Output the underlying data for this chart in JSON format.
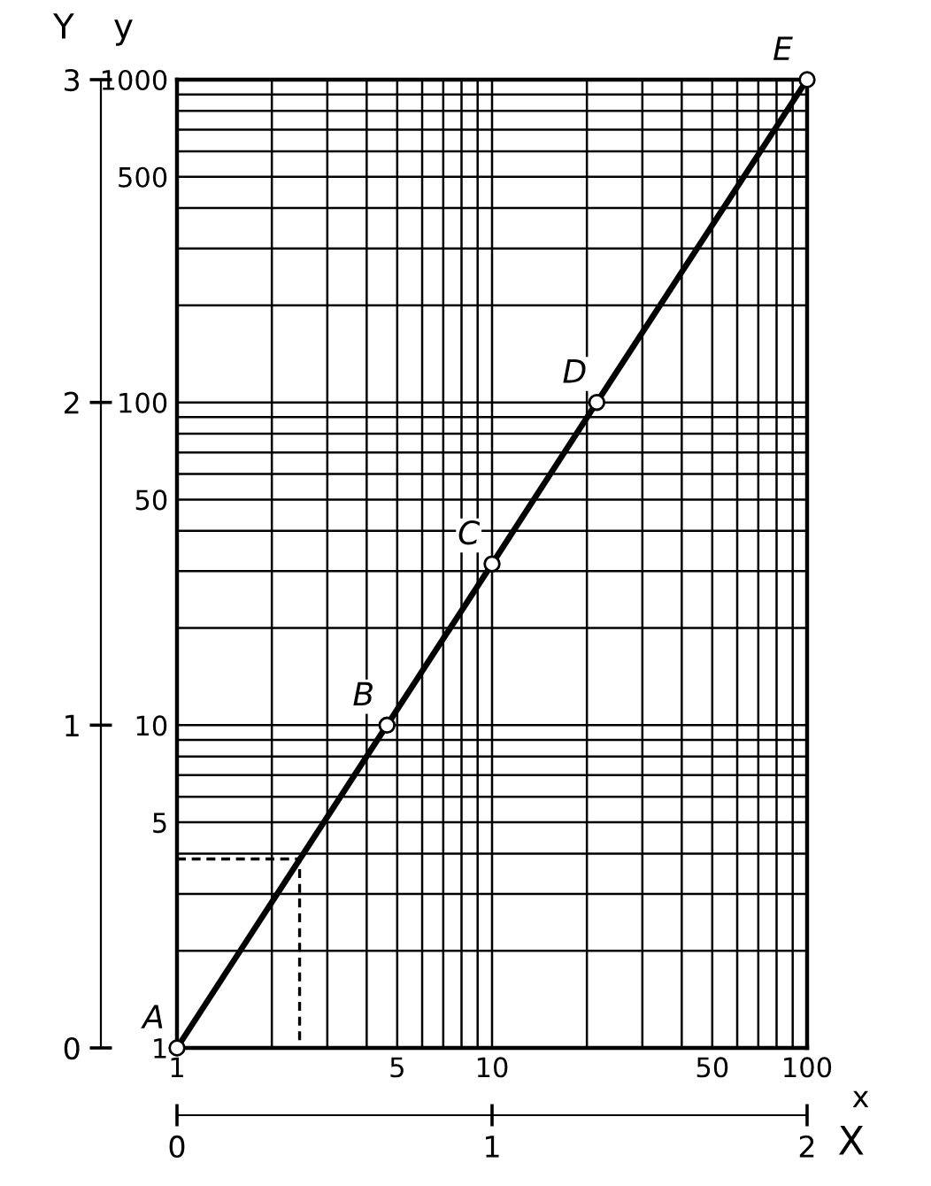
{
  "chart_data": {
    "type": "line",
    "xlabel": "x",
    "ylabel": "y",
    "x2label": "X",
    "y2label": "Y",
    "log": "xy",
    "grid": true,
    "xlim": [
      1,
      100
    ],
    "ylim": [
      1,
      1000
    ],
    "xticks": [
      1,
      {
        "value": 2,
        "label": null
      },
      {
        "value": 3,
        "label": null
      },
      {
        "value": 4,
        "label": null
      },
      5,
      {
        "value": 6,
        "label": null
      },
      {
        "value": 7,
        "label": null
      },
      {
        "value": 8,
        "label": null
      },
      {
        "value": 9,
        "label": null
      },
      10,
      {
        "value": 20,
        "label": null
      },
      {
        "value": 30,
        "label": null
      },
      {
        "value": 40,
        "label": null
      },
      50,
      {
        "value": 60,
        "label": null
      },
      {
        "value": 70,
        "label": null
      },
      {
        "value": 80,
        "label": null
      },
      {
        "value": 90,
        "label": null
      },
      100
    ],
    "yticks": [
      1,
      {
        "value": 2,
        "label": null
      },
      {
        "value": 3,
        "label": null
      },
      {
        "value": 4,
        "label": null
      },
      5,
      {
        "value": 6,
        "label": null
      },
      {
        "value": 7,
        "label": null
      },
      {
        "value": 8,
        "label": null
      },
      {
        "value": 9,
        "label": null
      },
      10,
      {
        "value": 20,
        "label": null
      },
      {
        "value": 30,
        "label": null
      },
      {
        "value": 40,
        "label": null
      },
      50,
      {
        "value": 60,
        "label": null
      },
      {
        "value": 70,
        "label": null
      },
      {
        "value": 80,
        "label": null
      },
      {
        "value": 90,
        "label": null
      },
      100,
      {
        "value": 200,
        "label": null
      },
      {
        "value": 300,
        "label": null
      },
      {
        "value": 400,
        "label": null
      },
      500,
      {
        "value": 600,
        "label": null
      },
      {
        "value": 700,
        "label": null
      },
      {
        "value": 800,
        "label": null
      },
      {
        "value": 900,
        "label": null
      },
      1000
    ],
    "x2lim": [
      0,
      2
    ],
    "x2ticks": [
      0,
      1,
      2
    ],
    "y2lim": [
      0,
      3
    ],
    "y2ticks": [
      0,
      1,
      2,
      3
    ],
    "series": [
      {
        "type": "line",
        "color": "#000000",
        "marker": "circle",
        "line_style": "solid",
        "x": [
          1,
          4.64,
          10,
          21.5,
          100
        ],
        "values": [
          1,
          10,
          31.6,
          100,
          1000
        ]
      },
      {
        "type": "line",
        "color": "#000000",
        "marker": "none",
        "line_style": "dashed",
        "x": [
          1,
          2.45,
          2.45
        ],
        "values": [
          3.85,
          3.85,
          1
        ]
      }
    ],
    "annotations": [
      {
        "text": "A",
        "x": 1,
        "y": 1
      },
      {
        "text": "B",
        "x": 4.64,
        "y": 10
      },
      {
        "text": "C",
        "x": 10,
        "y": 31.6
      },
      {
        "text": "D",
        "x": 21.5,
        "y": 100
      },
      {
        "text": "E",
        "x": 100,
        "y": 1000
      }
    ]
  }
}
